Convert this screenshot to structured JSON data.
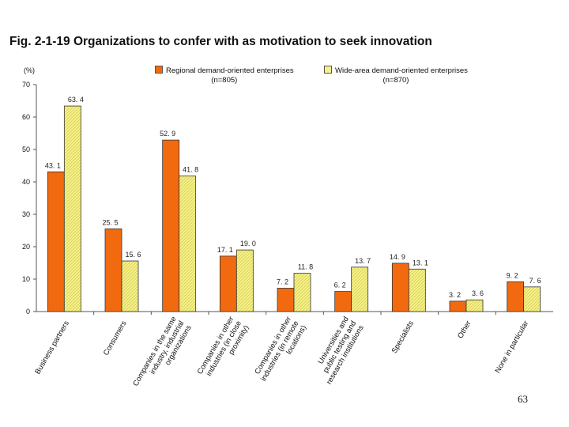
{
  "title": "Fig. 2-1-19  Organizations to confer with as motivation to seek innovation",
  "page_number": "63",
  "colors": {
    "regional": "#f26a0f",
    "wide": "#f4f08c",
    "wide_hatch": "#d8cf4a",
    "axis": "#555555"
  },
  "legend": [
    {
      "label": "Regional demand-oriented enterprises",
      "n": "(n=805)"
    },
    {
      "label": "Wide-area demand-oriented enterprises",
      "n": "(n=870)"
    }
  ],
  "chart_data": {
    "type": "bar",
    "title": "Organizations to confer with as motivation to seek innovation",
    "ylabel": "(%)",
    "xlabel": "",
    "ylim": [
      0,
      70
    ],
    "yticks": [
      0,
      10,
      20,
      30,
      40,
      50,
      60,
      70
    ],
    "grid": false,
    "legend_position": "top",
    "categories": [
      "Business partners",
      "Consumers",
      "Companies in the same industry, industrial organizations",
      "Companies in other industries (in close proximity)",
      "Companies in other industries (in remote locations)",
      "Universities and public testing and research institutions",
      "Specialists",
      "Other",
      "None in particular"
    ],
    "category_lines": [
      [
        "Business partners"
      ],
      [
        "Consumers"
      ],
      [
        "Companies in the same",
        "industry, industrial",
        "organizations"
      ],
      [
        "Companies in other",
        "industries (in close",
        "proximity)"
      ],
      [
        "Companies in other",
        "industries (in remote",
        "locations)"
      ],
      [
        "Universities and",
        "public testing and",
        "research institutions"
      ],
      [
        "Specialists"
      ],
      [
        "Other"
      ],
      [
        "None in particular"
      ]
    ],
    "series": [
      {
        "name": "Regional demand-oriented enterprises",
        "n": "(n=805)",
        "values": [
          43.1,
          25.5,
          52.9,
          17.1,
          7.2,
          6.2,
          14.9,
          3.2,
          9.2
        ],
        "labels": [
          "43. 1",
          "25. 5",
          "52. 9",
          "17. 1",
          "7. 2",
          "6. 2",
          "14. 9",
          "3. 2",
          "9. 2"
        ]
      },
      {
        "name": "Wide-area demand-oriented enterprises",
        "n": "(n=870)",
        "values": [
          63.4,
          15.6,
          41.8,
          19.0,
          11.8,
          13.7,
          13.1,
          3.6,
          7.6
        ],
        "labels": [
          "63. 4",
          "15. 6",
          "41. 8",
          "19. 0",
          "11. 8",
          "13. 7",
          "13. 1",
          "3. 6",
          "7. 6"
        ]
      }
    ]
  }
}
